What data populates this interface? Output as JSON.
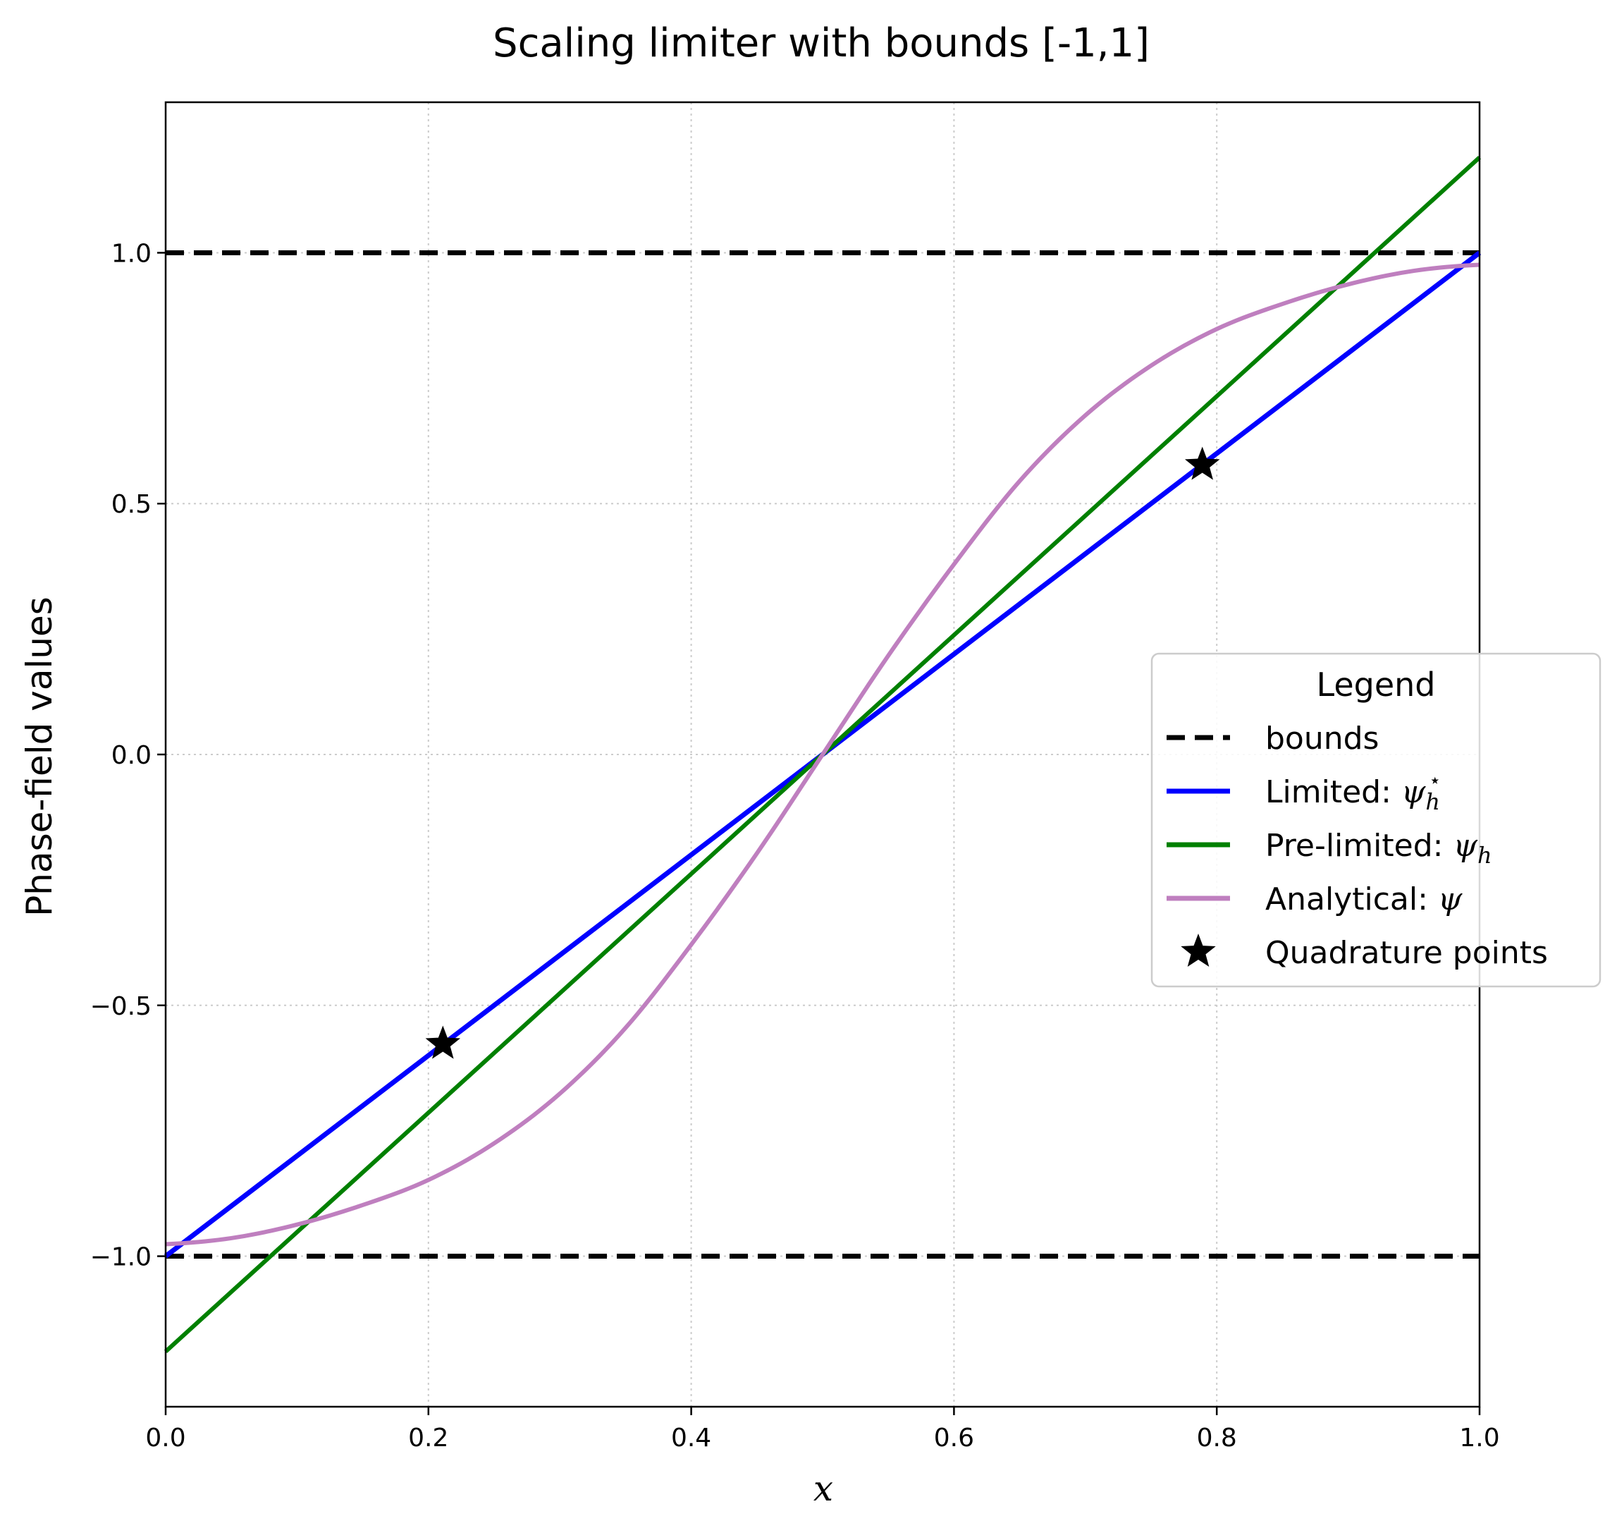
{
  "colors": {
    "bounds": "#000000",
    "limited": "#0000ff",
    "pre_limited": "#008000",
    "analytical": "#bf7fbf",
    "quadrature": "#000000",
    "grid": "#cccccc"
  },
  "chart_data": {
    "type": "line",
    "title": "Scaling limiter with bounds [-1,1]",
    "xlabel": "x",
    "ylabel": "Phase-field values",
    "xlim": [
      0.0,
      1.0
    ],
    "ylim": [
      -1.3,
      1.3
    ],
    "xticks": [
      0.0,
      0.2,
      0.4,
      0.6,
      0.8,
      1.0
    ],
    "xtick_labels": [
      "0.0",
      "0.2",
      "0.4",
      "0.6",
      "0.8",
      "1.0"
    ],
    "yticks": [
      -1.0,
      -0.5,
      0.0,
      0.5,
      1.0
    ],
    "ytick_labels": [
      "−1.0",
      "−0.5",
      "0.0",
      "0.5",
      "1.0"
    ],
    "grid": true,
    "legend": {
      "title": "Legend",
      "placement": "center-right",
      "entries": [
        {
          "key": "bounds",
          "style": "dashed",
          "text": "bounds",
          "math": ""
        },
        {
          "key": "limited",
          "style": "line",
          "text": "Limited: ",
          "math": "ψ",
          "sub": "h",
          "sup": "⋆"
        },
        {
          "key": "pre_limited",
          "style": "line",
          "text": "Pre-limited: ",
          "math": "ψ",
          "sub": "h",
          "sup": ""
        },
        {
          "key": "analytical",
          "style": "line",
          "text": "Analytical: ",
          "math": "ψ",
          "sub": "",
          "sup": ""
        },
        {
          "key": "quadrature",
          "style": "star",
          "text": "Quadrature points",
          "math": ""
        }
      ]
    },
    "series": [
      {
        "key": "bounds_upper",
        "kind": "hline",
        "y": 1.0
      },
      {
        "key": "bounds_lower",
        "kind": "hline",
        "y": -1.0
      },
      {
        "key": "limited",
        "kind": "line",
        "x": [
          0.0,
          1.0
        ],
        "y": [
          -1.0,
          1.0
        ]
      },
      {
        "key": "pre_limited",
        "kind": "line",
        "x": [
          0.0,
          1.0
        ],
        "y": [
          -1.19,
          1.19
        ]
      },
      {
        "key": "analytical",
        "kind": "line",
        "x": [
          0.0,
          0.05,
          0.1,
          0.15,
          0.2,
          0.25,
          0.3,
          0.35,
          0.4,
          0.45,
          0.5,
          0.55,
          0.6,
          0.65,
          0.7,
          0.75,
          0.8,
          0.85,
          0.9,
          0.95,
          1.0
        ],
        "y": [
          -0.976,
          -0.964,
          -0.937,
          -0.898,
          -0.848,
          -0.775,
          -0.676,
          -0.545,
          -0.379,
          -0.197,
          0.0,
          0.197,
          0.379,
          0.545,
          0.676,
          0.775,
          0.848,
          0.898,
          0.937,
          0.964,
          0.976
        ]
      },
      {
        "key": "quadrature",
        "kind": "scatter",
        "x": [
          0.211,
          0.789
        ],
        "y": [
          -0.577,
          0.577
        ]
      }
    ]
  }
}
